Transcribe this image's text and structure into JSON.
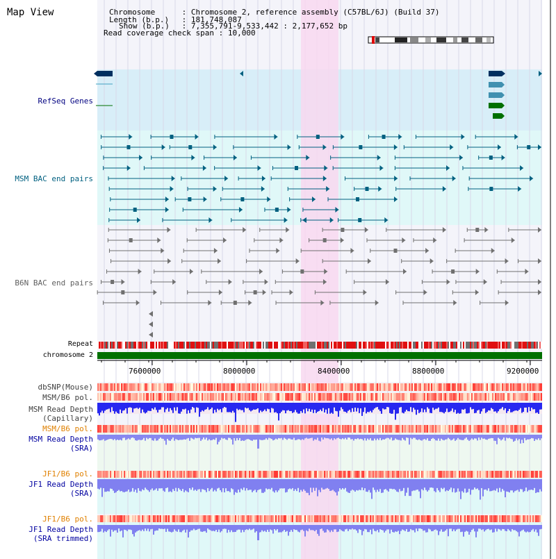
{
  "view_title": "Map View",
  "info": {
    "chromosome_key": "Chromosome",
    "chromosome_value": "Chromosome 2, reference assembly (C57BL/6J) (Build 37)",
    "length_key": "Length (b.p.)",
    "length_value": "181,748,087",
    "show_key": "Show (b.p.)",
    "show_value": "7,355,791-9,533,442 : 2,177,652 bp",
    "coverage_key": "Read coverage check span",
    "coverage_value": "10,000"
  },
  "tracks": {
    "refseq": "RefSeq Genes",
    "msm_bac": "MSM BAC end pairs",
    "b6n_bac": "B6N BAC end pairs",
    "repeat": "Repeat",
    "chromosome": "chromosome 2",
    "dbsnp": "dbSNP(Mouse)",
    "msm_b6_pol_1": "MSM/B6 pol.",
    "msm_depth_cap_1": "MSM Read Depth",
    "msm_depth_cap_2": "(Capillary)",
    "msm_b6_pol_2": "MSM/B6 pol.",
    "msm_depth_sra_1": "MSM Read Depth",
    "msm_depth_sra_2": "(SRA)",
    "jf1_b6_pol_1": "JF1/B6 pol.",
    "jf1_depth_sra_1": "JF1 Read Depth",
    "jf1_depth_sra_2": "(SRA)",
    "jf1_b6_pol_2": "JF1/B6 pol.",
    "jf1_depth_trim_1": "JF1 Read Depth",
    "jf1_depth_trim_2": "(SRA trimmed)"
  },
  "axis": {
    "ticks": [
      7600000,
      8000000,
      8400000,
      8800000,
      9200000
    ],
    "tick_labels": [
      "7600000",
      "8000000",
      "8400000",
      "8800000",
      "9200000"
    ]
  },
  "colors": {
    "highlight": "#f8d8f0",
    "refseq_bg": "#d8eef8",
    "msm_bg": "#e0f8f8",
    "msm_color": "#006080",
    "b6n_color": "#707070",
    "refseq_label": "#000080",
    "msm_label": "#006080",
    "b6n_label": "#606060",
    "orange_label": "#e08000",
    "blue_label": "#0000a0",
    "chrom_bar": "#007000",
    "repeat_red": "#e01010"
  }
}
